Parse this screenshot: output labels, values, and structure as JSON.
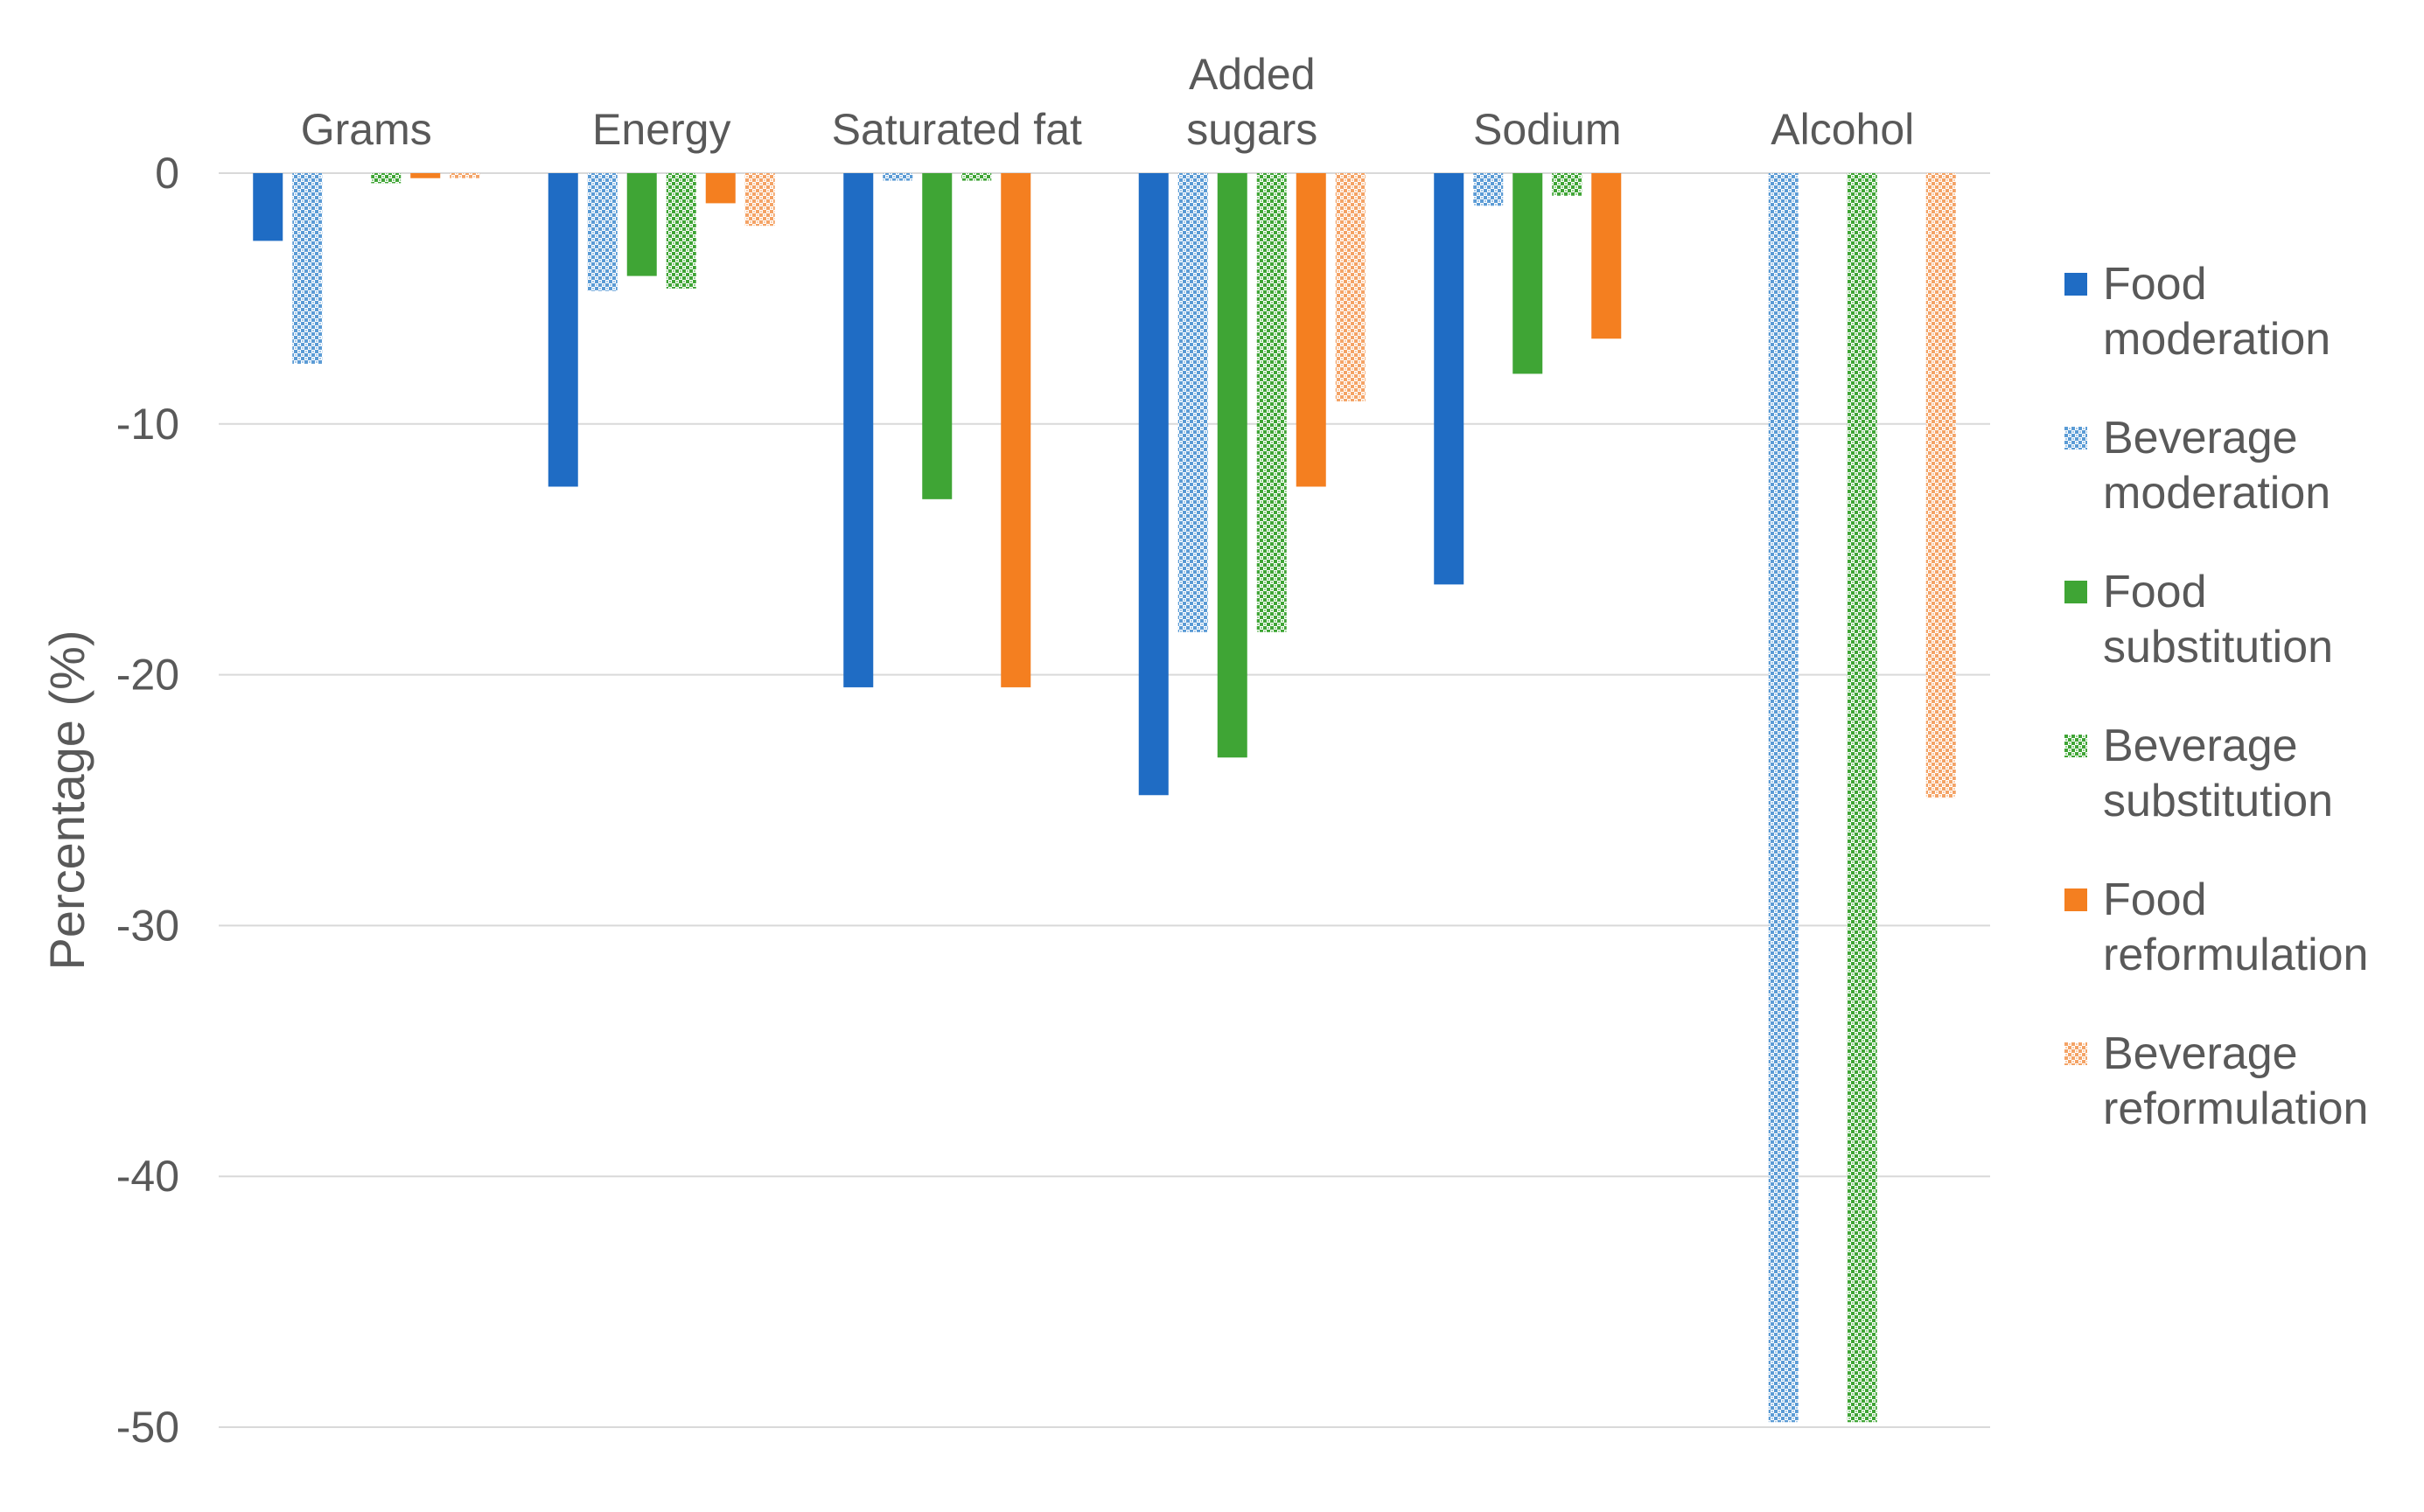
{
  "chart_data": {
    "type": "bar",
    "title": "",
    "xlabel": "",
    "ylabel": "Percentage (%)",
    "ylim": [
      -50,
      0
    ],
    "yticks": [
      0,
      -10,
      -20,
      -30,
      -40,
      -50
    ],
    "grid": true,
    "legend_position": "right",
    "categories": [
      [
        "Grams"
      ],
      [
        "Energy"
      ],
      [
        "Saturated fat"
      ],
      [
        "Added",
        "sugars"
      ],
      [
        "Sodium"
      ],
      [
        "Alcohol"
      ]
    ],
    "series": [
      {
        "name": [
          "Food",
          "moderation"
        ],
        "color": "#1f6cc4",
        "pattern": "solid",
        "values": [
          -2.7,
          -12.5,
          -20.5,
          -24.8,
          -16.4,
          0
        ]
      },
      {
        "name": [
          "Beverage",
          "moderation"
        ],
        "color": "#5b9bd5",
        "pattern": "checker",
        "values": [
          -7.6,
          -4.7,
          -0.3,
          -18.3,
          -1.3,
          -49.8
        ]
      },
      {
        "name": [
          "Food",
          "substitution"
        ],
        "color": "#3fa535",
        "pattern": "solid",
        "values": [
          0,
          -4.1,
          -13.0,
          -23.3,
          -8.0,
          0
        ]
      },
      {
        "name": [
          "Beverage",
          "substitution"
        ],
        "color": "#3fa535",
        "pattern": "checker",
        "values": [
          -0.4,
          -4.6,
          -0.3,
          -18.3,
          -0.9,
          -49.8
        ]
      },
      {
        "name": [
          "Food",
          "reformulation"
        ],
        "color": "#f47f20",
        "pattern": "solid",
        "values": [
          -0.2,
          -1.2,
          -20.5,
          -12.5,
          -6.6,
          0
        ]
      },
      {
        "name": [
          "Beverage",
          "reformulation"
        ],
        "color": "#f4a366",
        "pattern": "checker",
        "values": [
          -0.2,
          -2.1,
          0,
          -9.1,
          0,
          -24.9
        ]
      }
    ]
  }
}
